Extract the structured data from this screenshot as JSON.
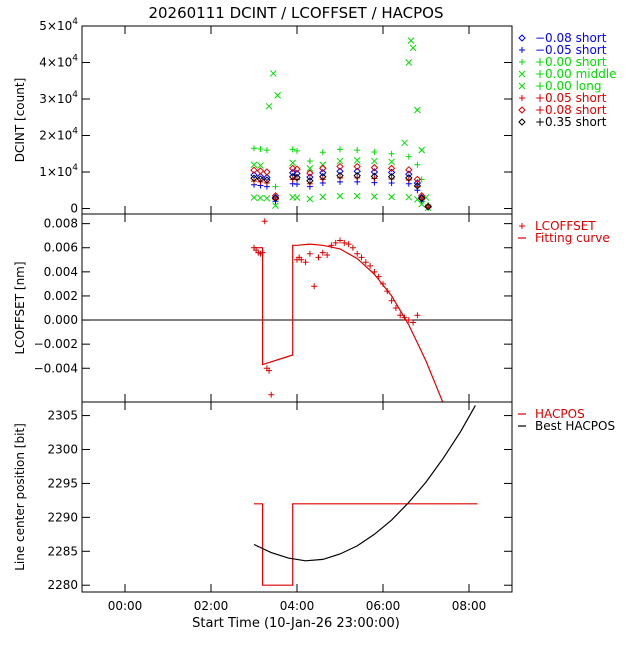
{
  "title": "20260111 DCINT / LCOFFSET / HACPOS",
  "xaxis": {
    "label": "Start Time (10-Jan-26 23:00:00)",
    "range_hours": [
      -1.0,
      9.0
    ],
    "ticks": [
      {
        "value": 0,
        "label": "00:00"
      },
      {
        "value": 2,
        "label": "02:00"
      },
      {
        "value": 4,
        "label": "04:00"
      },
      {
        "value": 6,
        "label": "06:00"
      },
      {
        "value": 8,
        "label": "08:00"
      }
    ]
  },
  "colors": {
    "blue": "#0000ff",
    "green": "#00dd00",
    "red": "#dd0000",
    "black": "#000000"
  },
  "chart_data": [
    {
      "type": "scatter",
      "ylabel": "DCINT [count]",
      "ylim": [
        -1500,
        50000
      ],
      "yticks": [
        {
          "value": 0,
          "label": "0",
          "exp": ""
        },
        {
          "value": 10000,
          "label": "1×10",
          "exp": "4"
        },
        {
          "value": 20000,
          "label": "2×10",
          "exp": "4"
        },
        {
          "value": 30000,
          "label": "3×10",
          "exp": "4"
        },
        {
          "value": 40000,
          "label": "4×10",
          "exp": "4"
        },
        {
          "value": 50000,
          "label": "5×10",
          "exp": "4"
        }
      ],
      "series": [
        {
          "name": "−0.08 short",
          "color": "blue",
          "marker": "diamond",
          "points": [
            [
              3.0,
              9200
            ],
            [
              3.15,
              8800
            ],
            [
              3.3,
              8500
            ],
            [
              3.5,
              3000
            ],
            [
              3.9,
              9800
            ],
            [
              4.0,
              9600
            ],
            [
              4.3,
              8600
            ],
            [
              4.6,
              9800
            ],
            [
              5.0,
              10200
            ],
            [
              5.4,
              10200
            ],
            [
              5.8,
              10000
            ],
            [
              6.2,
              9900
            ],
            [
              6.6,
              9400
            ],
            [
              6.8,
              7000
            ],
            [
              6.9,
              3000
            ],
            [
              7.05,
              500
            ]
          ]
        },
        {
          "name": "−0.05 short",
          "color": "blue",
          "marker": "plus",
          "points": [
            [
              3.0,
              6500
            ],
            [
              3.15,
              6300
            ],
            [
              3.3,
              6000
            ],
            [
              3.5,
              2000
            ],
            [
              3.9,
              6800
            ],
            [
              4.0,
              6700
            ],
            [
              4.3,
              6000
            ],
            [
              4.6,
              7000
            ],
            [
              5.0,
              7300
            ],
            [
              5.4,
              7300
            ],
            [
              5.8,
              7100
            ],
            [
              6.2,
              7000
            ],
            [
              6.6,
              6800
            ],
            [
              6.8,
              5000
            ],
            [
              6.9,
              2000
            ],
            [
              7.05,
              300
            ]
          ]
        },
        {
          "name": "+0.00 short",
          "color": "green",
          "marker": "plus",
          "points": [
            [
              3.0,
              16500
            ],
            [
              3.15,
              16300
            ],
            [
              3.3,
              16000
            ],
            [
              3.5,
              6000
            ],
            [
              3.9,
              16200
            ],
            [
              4.0,
              15800
            ],
            [
              4.3,
              13000
            ],
            [
              4.6,
              15400
            ],
            [
              5.0,
              16200
            ],
            [
              5.4,
              16000
            ],
            [
              5.8,
              15500
            ],
            [
              6.2,
              15000
            ],
            [
              6.6,
              14200
            ],
            [
              6.8,
              12000
            ],
            [
              6.9,
              8000
            ],
            [
              7.05,
              1000
            ]
          ]
        },
        {
          "name": "+0.00 middle",
          "color": "green",
          "marker": "x",
          "points": [
            [
              3.0,
              12000
            ],
            [
              3.15,
              11800
            ],
            [
              3.35,
              28000
            ],
            [
              3.45,
              37000
            ],
            [
              3.55,
              31000
            ],
            [
              3.9,
              12500
            ],
            [
              4.3,
              11000
            ],
            [
              4.6,
              12000
            ],
            [
              5.0,
              13000
            ],
            [
              5.4,
              13200
            ],
            [
              5.8,
              13000
            ],
            [
              6.2,
              12800
            ],
            [
              6.5,
              18000
            ],
            [
              6.6,
              40000
            ],
            [
              6.65,
              46000
            ],
            [
              6.7,
              44000
            ],
            [
              6.8,
              27000
            ],
            [
              6.9,
              16000
            ],
            [
              7.0,
              3000
            ]
          ]
        },
        {
          "name": "+0.00 long",
          "color": "green",
          "marker": "x",
          "points": [
            [
              3.0,
              3000
            ],
            [
              3.15,
              2900
            ],
            [
              3.3,
              2800
            ],
            [
              3.5,
              800
            ],
            [
              3.9,
              3100
            ],
            [
              4.0,
              3000
            ],
            [
              4.3,
              2600
            ],
            [
              4.6,
              3200
            ],
            [
              5.0,
              3400
            ],
            [
              5.4,
              3400
            ],
            [
              5.8,
              3300
            ],
            [
              6.2,
              3200
            ],
            [
              6.6,
              3100
            ],
            [
              6.8,
              2500
            ],
            [
              6.9,
              1200
            ],
            [
              7.05,
              200
            ]
          ]
        },
        {
          "name": "+0.05 short",
          "color": "red",
          "marker": "plus",
          "points": [
            [
              3.0,
              7500
            ],
            [
              3.15,
              7300
            ],
            [
              3.3,
              7000
            ],
            [
              3.5,
              2500
            ],
            [
              3.9,
              8000
            ],
            [
              4.0,
              7900
            ],
            [
              4.3,
              6800
            ],
            [
              4.6,
              8000
            ],
            [
              5.0,
              8400
            ],
            [
              5.4,
              8400
            ],
            [
              5.8,
              8200
            ],
            [
              6.2,
              8100
            ],
            [
              6.6,
              7800
            ],
            [
              6.8,
              6000
            ],
            [
              6.9,
              2500
            ],
            [
              7.05,
              400
            ]
          ]
        },
        {
          "name": "+0.08 short",
          "color": "red",
          "marker": "diamond",
          "points": [
            [
              3.0,
              10500
            ],
            [
              3.15,
              10300
            ],
            [
              3.3,
              10000
            ],
            [
              3.5,
              3500
            ],
            [
              3.9,
              11000
            ],
            [
              4.0,
              10800
            ],
            [
              4.3,
              9700
            ],
            [
              4.6,
              11000
            ],
            [
              5.0,
              11500
            ],
            [
              5.4,
              11500
            ],
            [
              5.8,
              11200
            ],
            [
              6.2,
              11000
            ],
            [
              6.6,
              10600
            ],
            [
              6.8,
              8000
            ],
            [
              6.9,
              3500
            ],
            [
              7.05,
              600
            ]
          ]
        },
        {
          "name": "+0.35 short",
          "color": "black",
          "marker": "diamond",
          "points": [
            [
              3.0,
              8300
            ],
            [
              3.15,
              8100
            ],
            [
              3.3,
              7800
            ],
            [
              3.5,
              2800
            ],
            [
              3.9,
              8700
            ],
            [
              4.0,
              8500
            ],
            [
              4.3,
              7600
            ],
            [
              4.6,
              8700
            ],
            [
              5.0,
              9000
            ],
            [
              5.4,
              9000
            ],
            [
              5.8,
              8800
            ],
            [
              6.2,
              8700
            ],
            [
              6.6,
              8400
            ],
            [
              6.8,
              6200
            ],
            [
              6.9,
              2800
            ],
            [
              7.05,
              450
            ]
          ]
        }
      ]
    },
    {
      "type": "scatter",
      "ylabel": "LCOFFSET [nm]",
      "ylim": [
        -0.0068,
        0.0088
      ],
      "zero_line": true,
      "yticks": [
        {
          "value": -0.004,
          "label": "−0.004"
        },
        {
          "value": -0.002,
          "label": "−0.002"
        },
        {
          "value": 0.0,
          "label": "0.000"
        },
        {
          "value": 0.002,
          "label": "0.002"
        },
        {
          "value": 0.004,
          "label": "0.004"
        },
        {
          "value": 0.006,
          "label": "0.006"
        },
        {
          "value": 0.008,
          "label": "0.008"
        }
      ],
      "series": [
        {
          "name": "LCOFFSET",
          "color": "red",
          "marker": "plus",
          "points": [
            [
              3.0,
              0.006
            ],
            [
              3.05,
              0.0058
            ],
            [
              3.1,
              0.0056
            ],
            [
              3.15,
              0.0055
            ],
            [
              3.2,
              0.0056
            ],
            [
              3.25,
              0.0082
            ],
            [
              3.3,
              -0.004
            ],
            [
              3.35,
              -0.0042
            ],
            [
              3.4,
              -0.0062
            ],
            [
              4.0,
              0.005
            ],
            [
              4.05,
              0.0052
            ],
            [
              4.1,
              0.005
            ],
            [
              4.2,
              0.0048
            ],
            [
              4.3,
              0.0055
            ],
            [
              4.4,
              0.0028
            ],
            [
              4.5,
              0.0052
            ],
            [
              4.6,
              0.0056
            ],
            [
              4.7,
              0.0054
            ],
            [
              4.8,
              0.0062
            ],
            [
              4.9,
              0.0064
            ],
            [
              5.0,
              0.0066
            ],
            [
              5.1,
              0.0064
            ],
            [
              5.2,
              0.0063
            ],
            [
              5.3,
              0.006
            ],
            [
              5.4,
              0.0055
            ],
            [
              5.5,
              0.0052
            ],
            [
              5.6,
              0.0048
            ],
            [
              5.7,
              0.0045
            ],
            [
              5.8,
              0.004
            ],
            [
              5.9,
              0.0036
            ],
            [
              6.0,
              0.003
            ],
            [
              6.1,
              0.0024
            ],
            [
              6.2,
              0.0016
            ],
            [
              6.3,
              0.001
            ],
            [
              6.4,
              0.0004
            ],
            [
              6.5,
              0.0002
            ],
            [
              6.6,
              0.0
            ],
            [
              6.7,
              -0.0002
            ],
            [
              6.8,
              0.0004
            ]
          ]
        },
        {
          "name": "Fitting curve",
          "color": "red",
          "marker": "line",
          "points": [
            [
              3.0,
              0.006
            ],
            [
              3.2,
              0.006
            ],
            [
              3.2,
              -0.0037
            ],
            [
              3.9,
              -0.0029
            ],
            [
              3.9,
              0.0062
            ],
            [
              4.0,
              0.0062
            ],
            [
              4.3,
              0.0063
            ],
            [
              4.6,
              0.0062
            ],
            [
              5.0,
              0.0059
            ],
            [
              5.4,
              0.0051
            ],
            [
              5.8,
              0.0038
            ],
            [
              6.2,
              0.002
            ],
            [
              6.6,
              -0.0004
            ],
            [
              7.0,
              -0.0034
            ],
            [
              7.4,
              -0.0069
            ]
          ]
        }
      ]
    },
    {
      "type": "line",
      "ylabel": "Line center position [bit]",
      "ylim": [
        2279,
        2307
      ],
      "yticks": [
        {
          "value": 2280,
          "label": "2280"
        },
        {
          "value": 2285,
          "label": "2285"
        },
        {
          "value": 2290,
          "label": "2290"
        },
        {
          "value": 2295,
          "label": "2295"
        },
        {
          "value": 2300,
          "label": "2300"
        },
        {
          "value": 2305,
          "label": "2305"
        }
      ],
      "series": [
        {
          "name": "HACPOS",
          "color": "red",
          "points": [
            [
              3.0,
              2292
            ],
            [
              3.2,
              2292
            ],
            [
              3.2,
              2280
            ],
            [
              3.9,
              2280
            ],
            [
              3.9,
              2292
            ],
            [
              8.2,
              2292
            ]
          ]
        },
        {
          "name": "Best HACPOS",
          "color": "black",
          "points": [
            [
              3.0,
              2286.0
            ],
            [
              3.4,
              2284.8
            ],
            [
              3.8,
              2284.0
            ],
            [
              4.2,
              2283.6
            ],
            [
              4.6,
              2283.8
            ],
            [
              5.0,
              2284.6
            ],
            [
              5.4,
              2285.8
            ],
            [
              5.8,
              2287.5
            ],
            [
              6.2,
              2289.6
            ],
            [
              6.6,
              2292.2
            ],
            [
              7.0,
              2295.2
            ],
            [
              7.4,
              2298.7
            ],
            [
              7.8,
              2302.6
            ],
            [
              8.15,
              2306.5
            ]
          ]
        }
      ]
    }
  ]
}
